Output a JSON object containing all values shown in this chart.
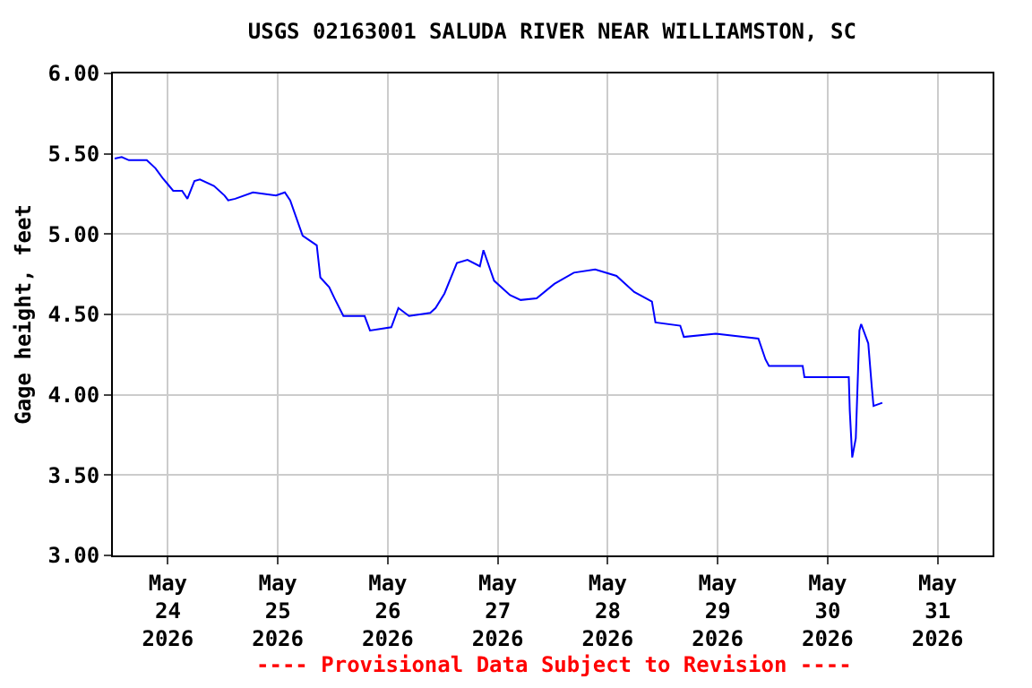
{
  "chart_data": {
    "type": "line",
    "title": "USGS 02163001 SALUDA RIVER NEAR WILLIAMSTON, SC",
    "ylabel": "Gage height, feet",
    "annotations": [
      "---- Provisional Data Subject to Revision ----"
    ],
    "x": [
      "2026-05-23T12:24",
      "2026-05-23T13:56",
      "2026-05-23T15:30",
      "2026-05-23T19:24",
      "2026-05-23T21:18",
      "2026-05-23T22:50",
      "2026-05-24T00:00",
      "2026-05-24T01:10",
      "2026-05-24T03:06",
      "2026-05-24T04:16",
      "2026-05-24T05:48",
      "2026-05-24T07:00",
      "2026-05-24T10:04",
      "2026-05-24T12:23",
      "2026-05-24T13:10",
      "2026-05-24T14:42",
      "2026-05-24T18:34",
      "2026-05-24T23:36",
      "2026-05-25T01:32",
      "2026-05-25T02:42",
      "2026-05-25T05:25",
      "2026-05-25T08:30",
      "2026-05-25T09:17",
      "2026-05-25T11:13",
      "2026-05-25T12:23",
      "2026-05-25T14:19",
      "2026-05-25T18:57",
      "2026-05-25T20:07",
      "2026-05-26T00:46",
      "2026-05-26T02:19",
      "2026-05-26T04:38",
      "2026-05-26T09:16",
      "2026-05-26T10:26",
      "2026-05-26T12:22",
      "2026-05-26T15:05",
      "2026-05-26T17:24",
      "2026-05-26T20:06",
      "2026-05-26T20:53",
      "2026-05-26T23:12",
      "2026-05-27T02:41",
      "2026-05-27T05:00",
      "2026-05-27T08:29",
      "2026-05-27T12:21",
      "2026-05-27T16:37",
      "2026-05-27T21:16",
      "2026-05-28T01:55",
      "2026-05-28T05:47",
      "2026-05-28T09:39",
      "2026-05-28T10:25",
      "2026-05-28T15:50",
      "2026-05-28T16:37",
      "2026-05-28T23:35",
      "2026-05-29T08:53",
      "2026-05-29T10:26",
      "2026-05-29T11:12",
      "2026-05-29T18:33",
      "2026-05-29T18:56",
      "2026-05-30T04:37",
      "2026-05-30T04:50",
      "2026-05-30T05:22",
      "2026-05-30T06:09",
      "2026-05-30T06:56",
      "2026-05-30T07:19",
      "2026-05-30T08:52",
      "2026-05-30T09:38",
      "2026-05-30T10:01",
      "2026-05-30T11:56"
    ],
    "series": [
      {
        "color": "#0000ff",
        "values": [
          5.47,
          5.48,
          5.46,
          5.46,
          5.41,
          5.35,
          5.31,
          5.27,
          5.27,
          5.22,
          5.33,
          5.34,
          5.3,
          5.24,
          5.21,
          5.22,
          5.26,
          5.24,
          5.26,
          5.21,
          4.99,
          4.93,
          4.73,
          4.67,
          4.6,
          4.49,
          4.49,
          4.4,
          4.42,
          4.54,
          4.49,
          4.51,
          4.54,
          4.63,
          4.82,
          4.84,
          4.8,
          4.9,
          4.71,
          4.62,
          4.59,
          4.6,
          4.69,
          4.76,
          4.78,
          4.74,
          4.64,
          4.58,
          4.45,
          4.43,
          4.36,
          4.38,
          4.35,
          4.22,
          4.18,
          4.18,
          4.11,
          4.11,
          3.9,
          3.61,
          3.73,
          4.4,
          4.44,
          4.32,
          4.05,
          3.93,
          3.95
        ]
      }
    ],
    "xlim": [
      "2026-05-23T12:00",
      "2026-05-31T12:00"
    ],
    "xticks": [
      {
        "value": "2026-05-24",
        "label": "May\n24\n2026"
      },
      {
        "value": "2026-05-25",
        "label": "May\n25\n2026"
      },
      {
        "value": "2026-05-26",
        "label": "May\n26\n2026"
      },
      {
        "value": "2026-05-27",
        "label": "May\n27\n2026"
      },
      {
        "value": "2026-05-28",
        "label": "May\n28\n2026"
      },
      {
        "value": "2026-05-29",
        "label": "May\n29\n2026"
      },
      {
        "value": "2026-05-30",
        "label": "May\n30\n2026"
      },
      {
        "value": "2026-05-31",
        "label": "May\n31\n2026"
      }
    ],
    "ylim": [
      3.0,
      6.0
    ],
    "yticks": [
      {
        "value": 3.0,
        "label": "3.00"
      },
      {
        "value": 3.5,
        "label": "3.50"
      },
      {
        "value": 4.0,
        "label": "4.00"
      },
      {
        "value": 4.5,
        "label": "4.50"
      },
      {
        "value": 5.0,
        "label": "5.00"
      },
      {
        "value": 5.5,
        "label": "5.50"
      },
      {
        "value": 6.0,
        "label": "6.00"
      }
    ],
    "grid": true,
    "legend": false,
    "marker": "none",
    "line_style": "solid"
  }
}
